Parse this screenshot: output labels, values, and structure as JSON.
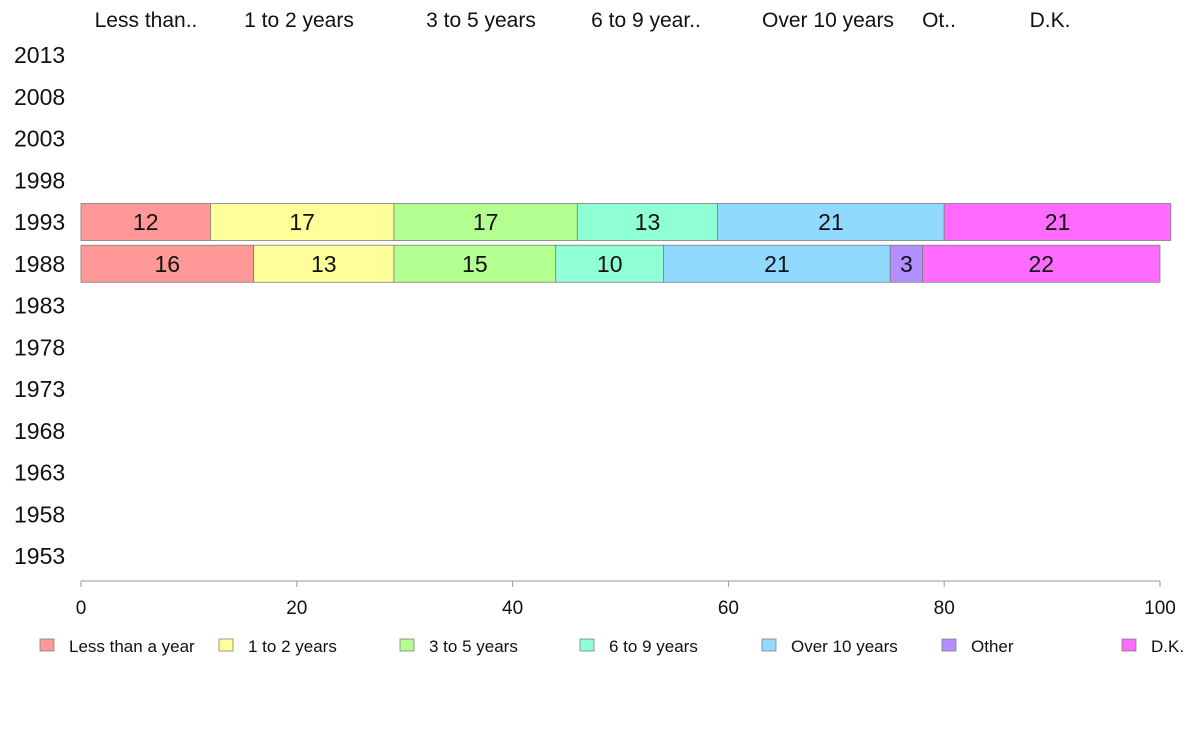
{
  "chart_data": {
    "type": "bar",
    "orientation": "horizontal",
    "stacked": true,
    "column_headers": [
      "Less than..",
      "1 to 2 years",
      "3 to 5 years",
      "6 to 9 year..",
      "Over 10 years",
      "Ot..",
      "D.K."
    ],
    "categories": [
      "2013",
      "2008",
      "2003",
      "1998",
      "1993",
      "1988",
      "1983",
      "1978",
      "1973",
      "1968",
      "1963",
      "1958",
      "1953"
    ],
    "series": [
      {
        "name": "Less than a year",
        "color": "#ff9896",
        "values": [
          null,
          null,
          null,
          null,
          12,
          16,
          null,
          null,
          null,
          null,
          null,
          null,
          null
        ]
      },
      {
        "name": "1 to 2 years",
        "color": "#ffff99",
        "values": [
          null,
          null,
          null,
          null,
          17,
          13,
          null,
          null,
          null,
          null,
          null,
          null,
          null
        ]
      },
      {
        "name": "3 to 5 years",
        "color": "#b3ff8f",
        "values": [
          null,
          null,
          null,
          null,
          17,
          15,
          null,
          null,
          null,
          null,
          null,
          null,
          null
        ]
      },
      {
        "name": "6 to 9 years",
        "color": "#8fffd6",
        "values": [
          null,
          null,
          null,
          null,
          13,
          10,
          null,
          null,
          null,
          null,
          null,
          null,
          null
        ]
      },
      {
        "name": "Over 10 years",
        "color": "#91d9ff",
        "values": [
          null,
          null,
          null,
          null,
          21,
          21,
          null,
          null,
          null,
          null,
          null,
          null,
          null
        ]
      },
      {
        "name": "Other",
        "color": "#b38fff",
        "values": [
          null,
          null,
          null,
          null,
          0,
          3,
          null,
          null,
          null,
          null,
          null,
          null,
          null
        ]
      },
      {
        "name": "D.K.",
        "color": "#ff6bff",
        "values": [
          null,
          null,
          null,
          null,
          21,
          22,
          null,
          null,
          null,
          null,
          null,
          null,
          null
        ]
      }
    ],
    "segment_labels": [
      {
        "category": "1993",
        "labels": [
          "12",
          "17",
          "17",
          "13",
          "21",
          "",
          "21"
        ]
      },
      {
        "category": "1988",
        "labels": [
          "16",
          "13",
          "15",
          "10",
          "21",
          "3",
          "22"
        ]
      }
    ],
    "xlim": [
      0,
      100
    ],
    "xticks": [
      "0",
      "20",
      "40",
      "60",
      "80",
      "100"
    ],
    "xtick_values": [
      0,
      20,
      40,
      60,
      80,
      100
    ],
    "grid": false,
    "legend_position": "bottom"
  }
}
